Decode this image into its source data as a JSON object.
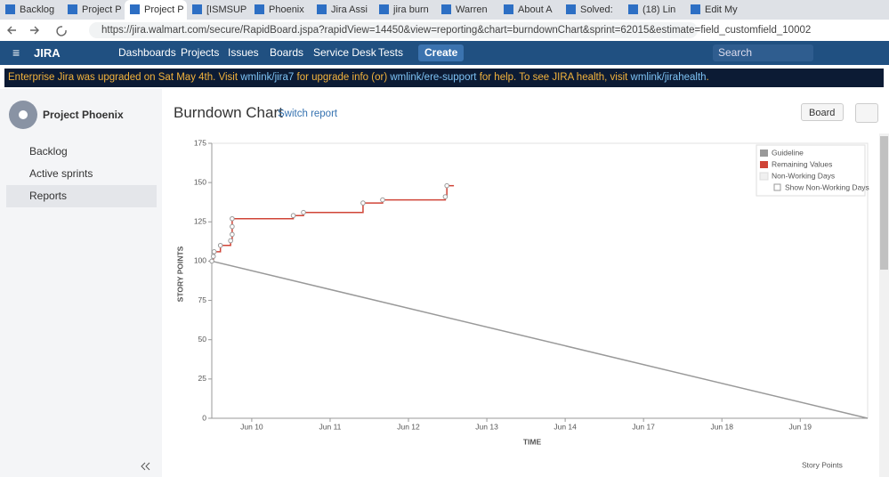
{
  "browser": {
    "tabs": [
      "Backlog",
      "Project P",
      "Project P",
      "[ISMSUP",
      "Phoenix",
      "Jira Assi",
      "jira burn",
      "Warren",
      "About A",
      "Solved:",
      "(18) Lin",
      "Edit My"
    ],
    "url": "https://jira.walmart.com/secure/RapidBoard.jspa?rapidView=14450&view=reporting&chart=burndownChart&sprint=62015&estimate=field_customfield_10002"
  },
  "nav": {
    "logo": "JIRA",
    "items": [
      "Dashboards",
      "Projects",
      "Issues",
      "Boards",
      "Service Desk",
      "Tests"
    ],
    "create": "Create",
    "search": "Search"
  },
  "banner": {
    "parts": [
      "Enterprise Jira was upgraded on Sat May 4th. Visit ",
      "wmlink/jira7",
      " for upgrade info (or) ",
      "wmlink/ere-support",
      " for help. To see JIRA health, visit ",
      "wmlink/jirahealth",
      "."
    ]
  },
  "sidebar": {
    "project": "Project Phoenix",
    "items": [
      "Backlog",
      "Active sprints",
      "Reports"
    ]
  },
  "header": {
    "title": "Burndown Chart",
    "switch": "Switch report",
    "board": "Board"
  },
  "chart_data": {
    "type": "line",
    "y_label": "STORY POINTS",
    "x_label": "TIME",
    "footer": "Story Points",
    "ylim": [
      0,
      175
    ],
    "yticks": [
      0,
      25,
      50,
      75,
      100,
      125,
      150,
      175
    ],
    "xlim": [
      0.49,
      8.86
    ],
    "xticks": [
      {
        "value": 1,
        "label": "Jun 10"
      },
      {
        "value": 2,
        "label": "Jun 11"
      },
      {
        "value": 3,
        "label": "Jun 12"
      },
      {
        "value": 4,
        "label": "Jun 13"
      },
      {
        "value": 5,
        "label": "Jun 14"
      },
      {
        "value": 6,
        "label": "Jun 17"
      },
      {
        "value": 7,
        "label": "Jun 18"
      },
      {
        "value": 8,
        "label": "Jun 19"
      }
    ],
    "series": [
      {
        "name": "Guideline",
        "color": "#999999",
        "x": [
          0.49,
          8.86
        ],
        "values": [
          100,
          0
        ]
      },
      {
        "name": "Remaining Values",
        "color": "#d04437",
        "step": true,
        "x": [
          0.49,
          0.51,
          0.52,
          0.6,
          0.73,
          0.75,
          0.75,
          0.75,
          1.53,
          1.66,
          2.42,
          2.67,
          3.47,
          3.49,
          3.58
        ],
        "values": [
          100,
          103,
          106,
          110,
          113,
          117,
          122,
          127,
          129,
          131,
          137,
          139,
          141,
          148,
          148
        ]
      }
    ],
    "legend_extra": {
      "name": "Non-Working Days",
      "color": "#f0f0f0",
      "checkbox": "Show Non-Working Days"
    }
  }
}
